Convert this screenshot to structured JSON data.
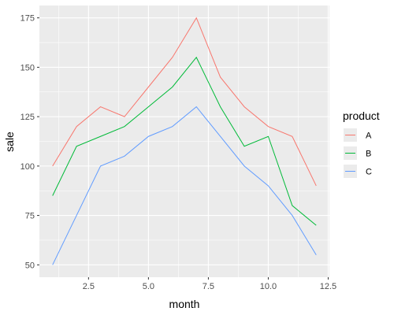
{
  "chart_data": {
    "type": "line",
    "title": "",
    "xlabel": "month",
    "ylabel": "sale",
    "x": [
      1,
      2,
      3,
      4,
      5,
      6,
      7,
      8,
      9,
      10,
      11,
      12
    ],
    "series": [
      {
        "name": "A",
        "color": "#F8766D",
        "values": [
          100,
          120,
          130,
          125,
          140,
          155,
          175,
          145,
          130,
          120,
          115,
          90
        ]
      },
      {
        "name": "B",
        "color": "#00BA38",
        "values": [
          85,
          110,
          115,
          120,
          130,
          140,
          155,
          130,
          110,
          115,
          80,
          70
        ]
      },
      {
        "name": "C",
        "color": "#619CFF",
        "values": [
          50,
          75,
          100,
          105,
          115,
          120,
          130,
          115,
          100,
          90,
          75,
          55
        ]
      }
    ],
    "xlim": [
      0.45,
      12.55
    ],
    "ylim": [
      43.75,
      181.25
    ],
    "x_ticks": [
      2.5,
      5.0,
      7.5,
      10.0,
      12.5
    ],
    "x_tick_labels": [
      "2.5",
      "5.0",
      "7.5",
      "10.0",
      "12.5"
    ],
    "y_ticks": [
      50,
      75,
      100,
      125,
      150,
      175
    ],
    "y_tick_labels": [
      "50",
      "75",
      "100",
      "125",
      "150",
      "175"
    ],
    "grid": true,
    "legend": {
      "title": "product",
      "position": "right"
    },
    "panel_background": "#EBEBEB",
    "gridline_color": "#FFFFFF"
  }
}
